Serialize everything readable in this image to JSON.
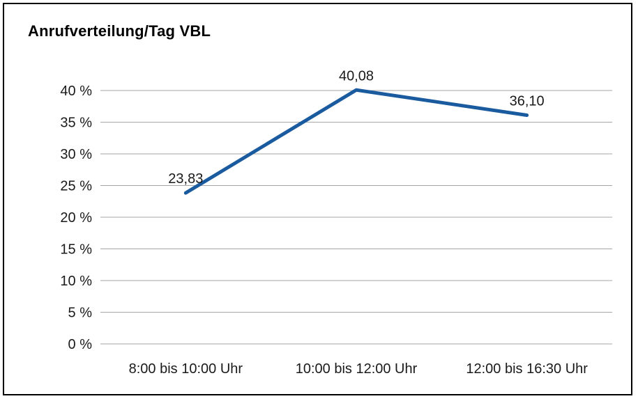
{
  "chart_data": {
    "type": "line",
    "title": "Anrufverteilung/Tag VBL",
    "categories": [
      "8:00 bis 10:00 Uhr",
      "10:00 bis 12:00 Uhr",
      "12:00 bis 16:30 Uhr"
    ],
    "values": [
      23.83,
      40.08,
      36.1
    ],
    "point_labels": [
      "23,83",
      "40,08",
      "36,10"
    ],
    "xlabel": "",
    "ylabel": "",
    "ylim": [
      0,
      40
    ],
    "ytick_step": 5,
    "ytick_labels": [
      "0 %",
      "5 %",
      "10 %",
      "15 %",
      "20 %",
      "25 %",
      "30 %",
      "35 %",
      "40 %"
    ],
    "grid": true,
    "legend_position": "none",
    "colors": {
      "line": "#1a5a9e",
      "grid": "#a6a6a6",
      "text": "#1a1a1a",
      "border": "#000000",
      "background": "#ffffff"
    }
  }
}
